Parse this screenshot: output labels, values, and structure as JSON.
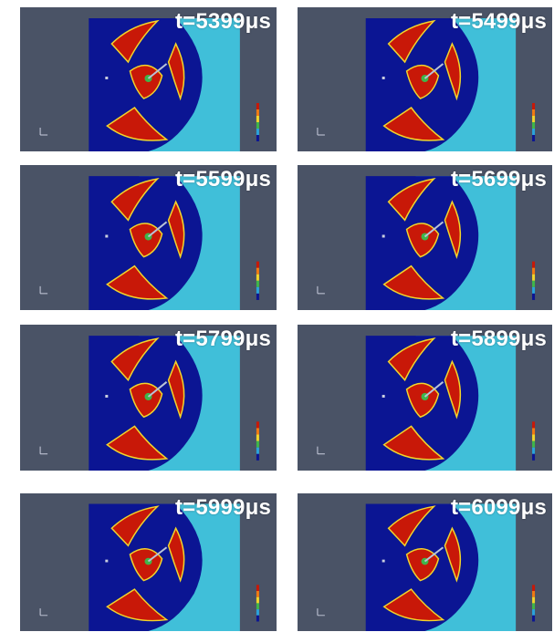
{
  "frames": [
    {
      "label": "t=5399μs"
    },
    {
      "label": "t=5499μs"
    },
    {
      "label": "t=5599μs"
    },
    {
      "label": "t=5699μs"
    },
    {
      "label": "t=5799μs"
    },
    {
      "label": "t=5899μs"
    },
    {
      "label": "t=5999μs"
    },
    {
      "label": "t=6099μs"
    }
  ],
  "colors": {
    "background": "#4a5366",
    "domain_dark_blue": "#0b1593",
    "light_cyan": "#40bfd9",
    "jet_red": "#c81808",
    "jet_yellow": "#f2d52b",
    "jet_green": "#3fb64a",
    "label_white": "#ffffff",
    "label_accent": "#5fe8f5"
  }
}
